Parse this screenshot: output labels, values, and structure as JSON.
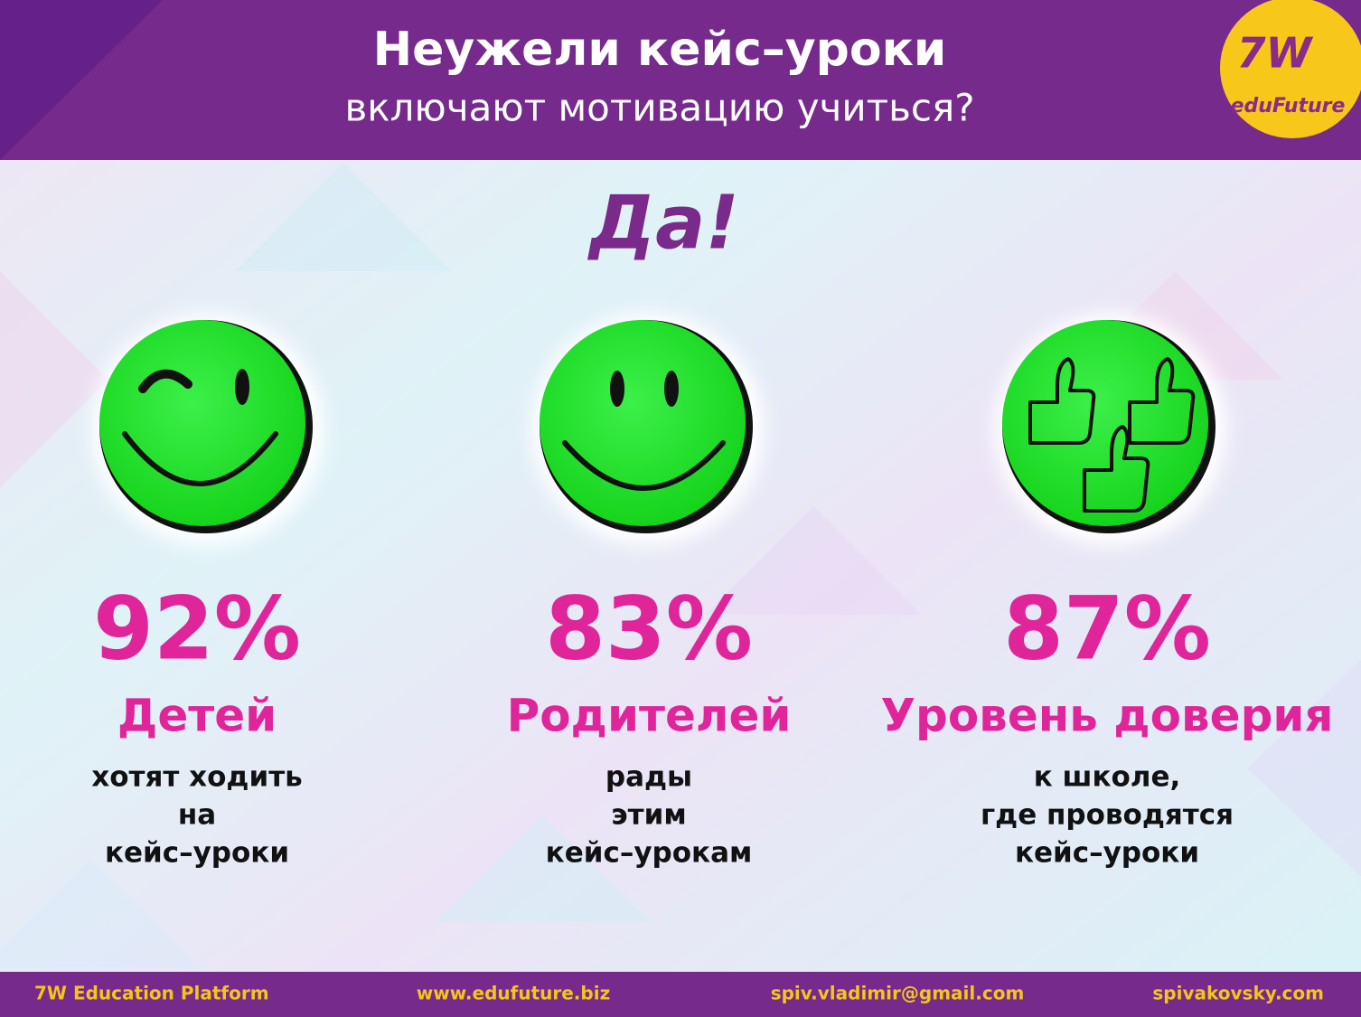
{
  "header": {
    "title": "Неужели кейс–уроки",
    "subtitle": "включают мотивацию учиться?",
    "logo": {
      "mark": "7W",
      "name": "eduFuture"
    }
  },
  "answer": "Да!",
  "items": [
    {
      "percent": "92%",
      "label": "Детей",
      "lines": [
        "хотят ходить",
        "на",
        "кейс–уроки"
      ]
    },
    {
      "percent": "83%",
      "label": "Родителей",
      "lines": [
        "рады",
        "этим",
        "кейс–урокам"
      ]
    },
    {
      "percent": "87%",
      "label": "Уровень доверия",
      "lines": [
        "к школе,",
        "где проводятся",
        "кейс–уроки"
      ]
    }
  ],
  "footer": [
    "7W Education Platform",
    "www.edufuture.biz",
    "spiv.vladimir@gmail.com",
    "spivakovsky.com"
  ]
}
